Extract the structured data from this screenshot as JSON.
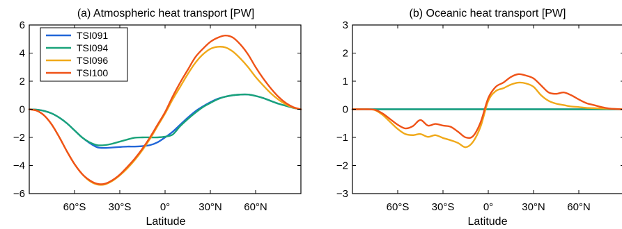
{
  "chart_data": [
    {
      "type": "line",
      "title": "(a) Atmospheric heat transport [PW]",
      "xlabel": "Latitude",
      "ylabel": "",
      "xlim": [
        -90,
        90
      ],
      "ylim": [
        -6,
        6
      ],
      "x_ticks": [
        -60,
        -30,
        0,
        30,
        60
      ],
      "x_tick_labels": [
        "60°S",
        "30°S",
        "0°",
        "30°N",
        "60°N"
      ],
      "y_ticks": [
        -6,
        -4,
        -2,
        0,
        2,
        4,
        6
      ],
      "y_tick_labels": [
        "−6",
        "−4",
        "−2",
        "0",
        "2",
        "4",
        "6"
      ],
      "grid": false,
      "legend_position": "top-left",
      "x": [
        -90,
        -85,
        -80,
        -75,
        -70,
        -65,
        -60,
        -55,
        -50,
        -45,
        -40,
        -35,
        -30,
        -25,
        -20,
        -15,
        -10,
        -5,
        0,
        5,
        10,
        15,
        20,
        25,
        30,
        35,
        40,
        45,
        50,
        55,
        60,
        65,
        70,
        75,
        80,
        85,
        90
      ],
      "series": [
        {
          "name": "TSI091",
          "color": "#2166d8",
          "values": [
            0,
            -0.03,
            -0.12,
            -0.3,
            -0.6,
            -1.0,
            -1.5,
            -2.0,
            -2.4,
            -2.7,
            -2.75,
            -2.72,
            -2.68,
            -2.65,
            -2.65,
            -2.62,
            -2.55,
            -2.35,
            -2.0,
            -1.6,
            -1.1,
            -0.6,
            -0.15,
            0.2,
            0.5,
            0.75,
            0.9,
            1.0,
            1.05,
            1.05,
            0.95,
            0.8,
            0.6,
            0.4,
            0.25,
            0.1,
            0
          ]
        },
        {
          "name": "TSI094",
          "color": "#1aa37a",
          "values": [
            0,
            -0.03,
            -0.12,
            -0.3,
            -0.6,
            -1.0,
            -1.5,
            -2.0,
            -2.35,
            -2.55,
            -2.55,
            -2.45,
            -2.3,
            -2.15,
            -2.02,
            -2.0,
            -2.0,
            -2.0,
            -1.95,
            -1.8,
            -1.2,
            -0.7,
            -0.25,
            0.15,
            0.45,
            0.72,
            0.9,
            1.0,
            1.05,
            1.05,
            0.95,
            0.8,
            0.6,
            0.4,
            0.25,
            0.1,
            0
          ]
        },
        {
          "name": "TSI096",
          "color": "#f0a91a",
          "values": [
            0,
            -0.1,
            -0.45,
            -1.1,
            -2.0,
            -3.0,
            -3.9,
            -4.6,
            -5.1,
            -5.35,
            -5.35,
            -5.1,
            -4.7,
            -4.2,
            -3.6,
            -2.9,
            -2.1,
            -1.2,
            -0.3,
            0.7,
            1.6,
            2.5,
            3.3,
            3.9,
            4.3,
            4.45,
            4.4,
            4.1,
            3.6,
            3.0,
            2.3,
            1.7,
            1.15,
            0.7,
            0.35,
            0.12,
            0
          ]
        },
        {
          "name": "TSI100",
          "color": "#ef5318",
          "values": [
            0,
            -0.1,
            -0.45,
            -1.1,
            -2.0,
            -3.0,
            -3.9,
            -4.6,
            -5.05,
            -5.3,
            -5.3,
            -5.05,
            -4.65,
            -4.1,
            -3.5,
            -2.8,
            -2.0,
            -1.1,
            -0.2,
            0.9,
            1.9,
            2.8,
            3.7,
            4.3,
            4.8,
            5.1,
            5.25,
            5.1,
            4.6,
            3.9,
            3.0,
            2.2,
            1.5,
            0.9,
            0.45,
            0.15,
            0
          ]
        }
      ]
    },
    {
      "type": "line",
      "title": "(b) Oceanic heat transport [PW]",
      "xlabel": "Latitude",
      "ylabel": "",
      "xlim": [
        -90,
        90
      ],
      "ylim": [
        -3,
        3
      ],
      "x_ticks": [
        -60,
        -30,
        0,
        30,
        60
      ],
      "x_tick_labels": [
        "60°S",
        "30°S",
        "0°",
        "30°N",
        "60°N"
      ],
      "y_ticks": [
        -3,
        -2,
        -1,
        0,
        1,
        2,
        3
      ],
      "y_tick_labels": [
        "−3",
        "−2",
        "−1",
        "0",
        "1",
        "2",
        "3"
      ],
      "grid": false,
      "x": [
        -90,
        -85,
        -80,
        -75,
        -70,
        -65,
        -60,
        -55,
        -50,
        -45,
        -40,
        -35,
        -30,
        -25,
        -20,
        -15,
        -10,
        -5,
        0,
        5,
        10,
        15,
        20,
        25,
        30,
        35,
        40,
        45,
        50,
        55,
        60,
        65,
        70,
        75,
        80,
        85,
        90
      ],
      "series": [
        {
          "name": "TSI091",
          "color": "#2166d8",
          "values": [
            0,
            0,
            0,
            0,
            0,
            0,
            0,
            0,
            0,
            0,
            0,
            0,
            0,
            0,
            0,
            0,
            0,
            0,
            0,
            0,
            0,
            0,
            0,
            0,
            0,
            0,
            0,
            0,
            0,
            0,
            0,
            0,
            0,
            0,
            0,
            0,
            0
          ]
        },
        {
          "name": "TSI094",
          "color": "#1aa37a",
          "values": [
            0,
            0,
            0,
            0,
            0,
            0,
            0,
            0,
            0,
            0,
            0,
            0,
            0,
            0,
            0,
            0,
            0,
            0,
            0,
            0,
            0,
            0,
            0,
            0,
            0,
            0,
            0,
            0,
            0,
            0,
            0,
            0,
            0,
            0,
            0,
            0,
            0
          ]
        },
        {
          "name": "TSI096",
          "color": "#f0a91a",
          "values": [
            0,
            0,
            0,
            -0.03,
            -0.2,
            -0.45,
            -0.7,
            -0.88,
            -0.92,
            -0.88,
            -0.98,
            -0.92,
            -1.02,
            -1.1,
            -1.2,
            -1.35,
            -1.15,
            -0.6,
            0.3,
            0.65,
            0.75,
            0.88,
            0.95,
            0.92,
            0.8,
            0.5,
            0.3,
            0.2,
            0.15,
            0.1,
            0.08,
            0.05,
            0.04,
            0.03,
            0.02,
            0.01,
            0
          ]
        },
        {
          "name": "TSI100",
          "color": "#ef5318",
          "values": [
            0,
            0,
            0,
            -0.02,
            -0.15,
            -0.35,
            -0.55,
            -0.68,
            -0.6,
            -0.38,
            -0.58,
            -0.52,
            -0.58,
            -0.62,
            -0.8,
            -1.0,
            -0.95,
            -0.45,
            0.4,
            0.8,
            0.95,
            1.15,
            1.25,
            1.2,
            1.1,
            0.85,
            0.6,
            0.55,
            0.6,
            0.5,
            0.35,
            0.22,
            0.15,
            0.08,
            0.03,
            0.01,
            0
          ]
        }
      ]
    }
  ]
}
